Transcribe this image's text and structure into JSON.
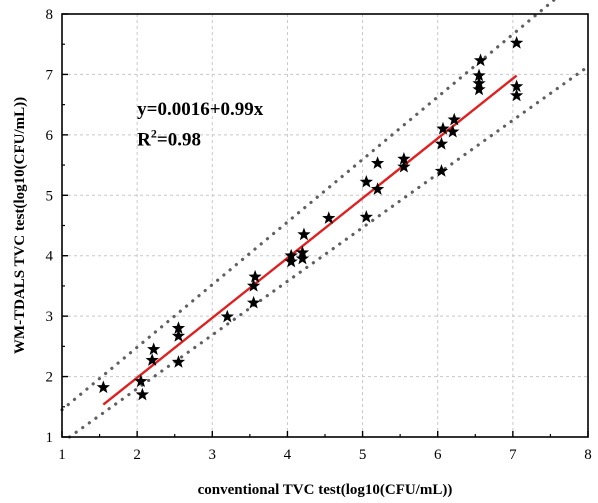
{
  "chart_data": {
    "type": "scatter",
    "title": "",
    "xlabel": "conventional TVC test(log10(CFU/mL))",
    "ylabel": "WM-TDALS  TVC test(log10(CFU/mL))",
    "xlim": [
      1,
      8
    ],
    "ylim": [
      1,
      8
    ],
    "x_ticks": [
      "1",
      "2",
      "3",
      "4",
      "5",
      "6",
      "7",
      "8"
    ],
    "y_ticks": [
      "1",
      "2",
      "3",
      "4",
      "5",
      "6",
      "7",
      "8"
    ],
    "grid": true,
    "marker": "star",
    "points": [
      {
        "x": 1.55,
        "y": 1.82
      },
      {
        "x": 2.05,
        "y": 1.92
      },
      {
        "x": 2.07,
        "y": 1.7
      },
      {
        "x": 2.2,
        "y": 2.27
      },
      {
        "x": 2.22,
        "y": 2.45
      },
      {
        "x": 2.55,
        "y": 2.24
      },
      {
        "x": 2.55,
        "y": 2.67
      },
      {
        "x": 2.55,
        "y": 2.8
      },
      {
        "x": 3.2,
        "y": 2.99
      },
      {
        "x": 3.55,
        "y": 3.22
      },
      {
        "x": 3.55,
        "y": 3.5
      },
      {
        "x": 3.57,
        "y": 3.65
      },
      {
        "x": 4.05,
        "y": 3.9
      },
      {
        "x": 4.05,
        "y": 4.0
      },
      {
        "x": 4.2,
        "y": 3.95
      },
      {
        "x": 4.2,
        "y": 4.05
      },
      {
        "x": 4.22,
        "y": 4.35
      },
      {
        "x": 4.55,
        "y": 4.62
      },
      {
        "x": 5.05,
        "y": 4.64
      },
      {
        "x": 5.05,
        "y": 5.22
      },
      {
        "x": 5.2,
        "y": 5.1
      },
      {
        "x": 5.2,
        "y": 5.53
      },
      {
        "x": 5.55,
        "y": 5.47
      },
      {
        "x": 5.55,
        "y": 5.6
      },
      {
        "x": 6.05,
        "y": 5.4
      },
      {
        "x": 6.05,
        "y": 5.85
      },
      {
        "x": 6.07,
        "y": 6.1
      },
      {
        "x": 6.2,
        "y": 6.05
      },
      {
        "x": 6.22,
        "y": 6.25
      },
      {
        "x": 6.55,
        "y": 6.75
      },
      {
        "x": 6.55,
        "y": 6.85
      },
      {
        "x": 6.55,
        "y": 6.98
      },
      {
        "x": 6.57,
        "y": 7.23
      },
      {
        "x": 7.05,
        "y": 6.65
      },
      {
        "x": 7.05,
        "y": 6.8
      },
      {
        "x": 7.05,
        "y": 7.52
      }
    ],
    "fit_line": {
      "x_range": [
        1.55,
        7.05
      ],
      "intercept": 0.0016,
      "slope": 0.99,
      "color": "#e02020"
    },
    "confidence_bands": [
      {
        "x_range": [
          1,
          8
        ],
        "y_range": [
          1.45,
          8.7
        ],
        "style": "dotted",
        "color": "#606060"
      },
      {
        "x_range": [
          1.1,
          8
        ],
        "y_range": [
          1,
          7.13
        ],
        "style": "dotted",
        "color": "#606060"
      }
    ],
    "annotations": [
      {
        "text": "y=0.0016+0.99x",
        "x": 2.0,
        "y": 6.33
      },
      {
        "text": "R",
        "superscript": "2",
        "suffix": "=0.98",
        "x": 2.0,
        "y": 5.82
      }
    ]
  }
}
